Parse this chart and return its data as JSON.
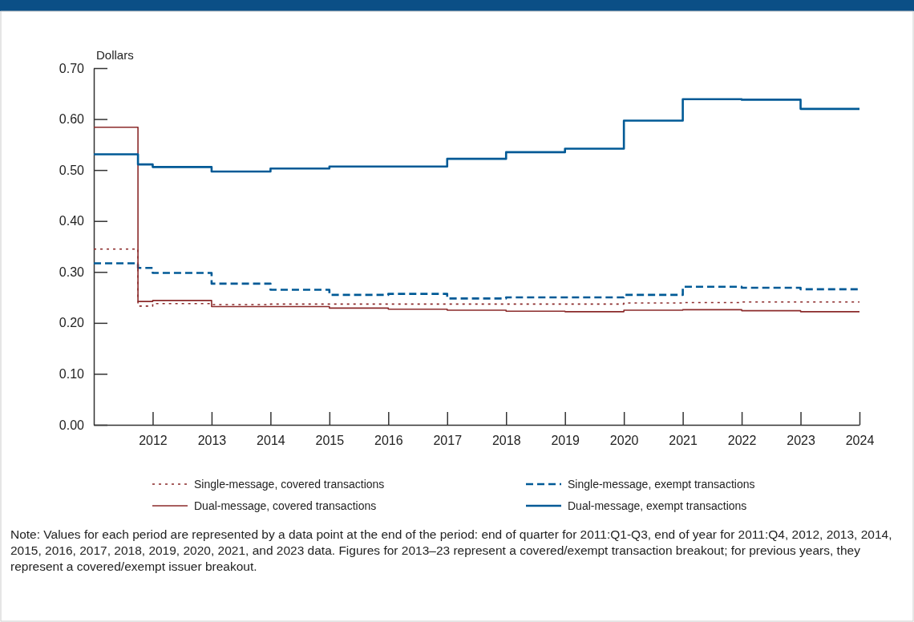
{
  "chart_data": {
    "type": "step",
    "ylabel": "Dollars",
    "x": [
      2011,
      2011.75,
      2012,
      2013,
      2014,
      2015,
      2016,
      2017,
      2018,
      2019,
      2020,
      2021,
      2022,
      2023,
      2024
    ],
    "xlim": [
      2011,
      2024
    ],
    "xticks": [
      2012,
      2013,
      2014,
      2015,
      2016,
      2017,
      2018,
      2019,
      2020,
      2021,
      2022,
      2023,
      2024
    ],
    "ylim": [
      0,
      0.7
    ],
    "yticks": [
      {
        "value": 0,
        "label": "0.00"
      },
      {
        "value": 0.1,
        "label": "0.10"
      },
      {
        "value": 0.2,
        "label": "0.20"
      },
      {
        "value": 0.3,
        "label": "0.30"
      },
      {
        "value": 0.4,
        "label": "0.40"
      },
      {
        "value": 0.5,
        "label": "0.50"
      },
      {
        "value": 0.6,
        "label": "0.60"
      },
      {
        "value": 0.7,
        "label": "0.70"
      }
    ],
    "legend": "bottom",
    "grid": false,
    "series": [
      {
        "name": "Single-message, covered transactions",
        "color": "#8b2a2a",
        "line_style": "dotted",
        "values": [
          0.345,
          0.345,
          0.233,
          0.238,
          0.236,
          0.237,
          0.237,
          0.237,
          0.237,
          0.237,
          0.237,
          0.239,
          0.24,
          0.241,
          0.241
        ]
      },
      {
        "name": "Single-message, exempt transactions",
        "color": "#005a96",
        "line_style": "dashed",
        "values": [
          0.317,
          0.317,
          0.308,
          0.298,
          0.277,
          0.265,
          0.255,
          0.257,
          0.248,
          0.25,
          0.25,
          0.255,
          0.271,
          0.269,
          0.266
        ]
      },
      {
        "name": "Dual-message, covered transactions",
        "color": "#8b2a2a",
        "line_style": "solid",
        "values": [
          0.584,
          0.584,
          0.242,
          0.244,
          0.232,
          0.232,
          0.229,
          0.227,
          0.225,
          0.223,
          0.222,
          0.225,
          0.226,
          0.224,
          0.222
        ]
      },
      {
        "name": "Dual-message, exempt transactions",
        "color": "#005a96",
        "line_style": "solid",
        "values": [
          0.531,
          0.531,
          0.511,
          0.506,
          0.497,
          0.503,
          0.507,
          0.507,
          0.522,
          0.535,
          0.542,
          0.597,
          0.639,
          0.638,
          0.62
        ]
      }
    ],
    "annotations": [
      "Note: Values for each period are represented by a data point at the end of the period: end of quarter for 2011:Q1-Q3, end of year for 2011:Q4, 2012, 2013, 2014, 2015, 2016, 2017, 2018, 2019, 2020, 2021, and 2023 data. Figures for 2013–23 represent a covered/exempt transaction breakout; for previous years, they represent a covered/exempt issuer breakout."
    ]
  }
}
